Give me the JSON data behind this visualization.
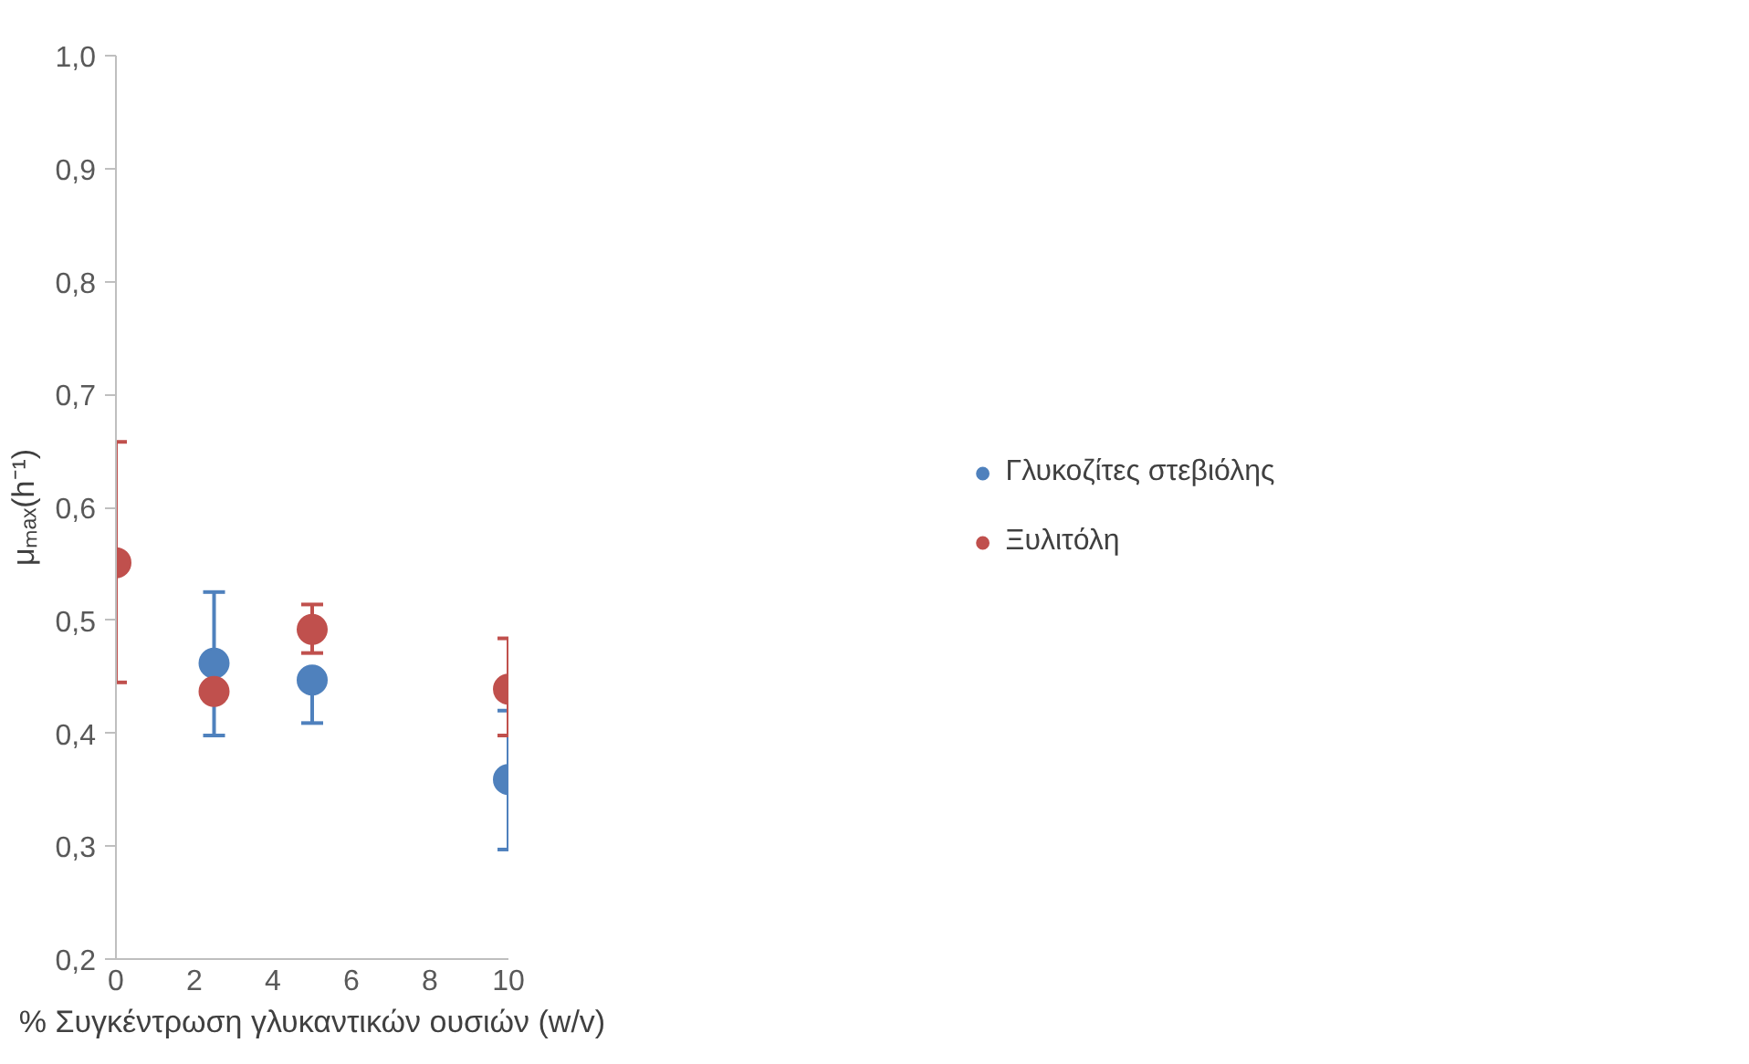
{
  "chart_data": {
    "type": "scatter",
    "xlabel": "% Συγκέντρωση γλυκαντικών ουσιών (w/v)",
    "ylabel": "μₘₐₓ(h⁻¹)",
    "series": [
      {
        "name": "Γλυκοζίτες στεβιόλης",
        "color": "#4f81bd",
        "x": [
          2.5,
          5,
          10
        ],
        "values": [
          0.462,
          0.447,
          0.359
        ],
        "errors": [
          [
            0.398,
            0.525
          ],
          [
            0.409,
            0.447
          ],
          [
            0.297,
            0.42
          ]
        ]
      },
      {
        "name": "Ξυλιτόλη",
        "color": "#c0504d",
        "x": [
          0,
          2.5,
          5,
          10
        ],
        "values": [
          0.551,
          0.437,
          0.492,
          0.439
        ],
        "errors": [
          [
            0.445,
            0.658
          ],
          null,
          [
            0.471,
            0.514
          ],
          [
            0.398,
            0.484
          ]
        ]
      }
    ],
    "xlim": [
      0,
      10
    ],
    "ylim": [
      0.2,
      1.0
    ],
    "xticks": [
      0,
      2,
      4,
      6,
      8,
      10
    ],
    "yticks": [
      {
        "value": 0.2,
        "label": "0,2"
      },
      {
        "value": 0.3,
        "label": "0,3"
      },
      {
        "value": 0.4,
        "label": "0,4"
      },
      {
        "value": 0.5,
        "label": "0,5"
      },
      {
        "value": 0.6,
        "label": "0,6"
      },
      {
        "value": 0.7,
        "label": "0,7"
      },
      {
        "value": 0.8,
        "label": "0,8"
      },
      {
        "value": 0.9,
        "label": "0,9"
      },
      {
        "value": 1.0,
        "label": "1,0"
      }
    ],
    "marker": "circle",
    "grid": false,
    "legend": "right"
  }
}
